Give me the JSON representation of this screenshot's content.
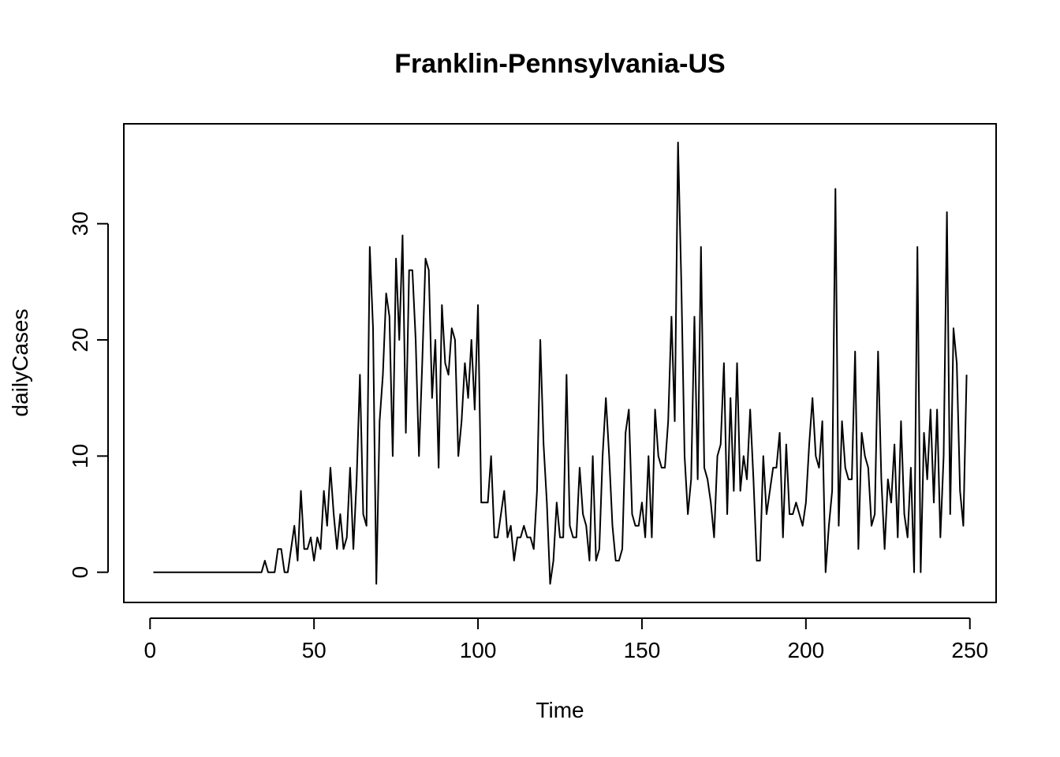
{
  "chart_data": {
    "type": "line",
    "title": "Franklin-Pennsylvania-US",
    "xlabel": "Time",
    "ylabel": "dailyCases",
    "xlim": [
      -8,
      258
    ],
    "ylim": [
      -2.6,
      38.6
    ],
    "xticks": [
      0,
      50,
      100,
      150,
      200,
      250
    ],
    "yticks": [
      0,
      10,
      20,
      30
    ],
    "line_color": "#000000",
    "x_start": 1,
    "values": [
      0,
      0,
      0,
      0,
      0,
      0,
      0,
      0,
      0,
      0,
      0,
      0,
      0,
      0,
      0,
      0,
      0,
      0,
      0,
      0,
      0,
      0,
      0,
      0,
      0,
      0,
      0,
      0,
      0,
      0,
      0,
      0,
      0,
      0,
      1,
      0,
      0,
      0,
      2,
      2,
      0,
      0,
      2,
      4,
      1,
      7,
      2,
      2,
      3,
      1,
      3,
      2,
      7,
      4,
      9,
      5,
      2,
      5,
      2,
      3,
      9,
      2,
      8,
      17,
      5,
      4,
      28,
      21,
      -1,
      13,
      17,
      24,
      22,
      10,
      27,
      20,
      29,
      12,
      26,
      26,
      20,
      10,
      18,
      27,
      26,
      15,
      20,
      9,
      23,
      18,
      17,
      21,
      20,
      10,
      13,
      18,
      15,
      20,
      14,
      23,
      6,
      6,
      6,
      10,
      3,
      3,
      5,
      7,
      3,
      4,
      1,
      3,
      3,
      4,
      3,
      3,
      2,
      7,
      20,
      11,
      6,
      -1,
      1,
      6,
      3,
      3,
      17,
      4,
      3,
      3,
      9,
      5,
      4,
      1,
      10,
      1,
      2,
      10,
      15,
      10,
      4,
      1,
      1,
      2,
      12,
      14,
      5,
      4,
      4,
      6,
      3,
      10,
      3,
      14,
      10,
      9,
      9,
      13,
      22,
      13,
      37,
      25,
      10,
      5,
      8,
      22,
      8,
      28,
      9,
      8,
      6,
      3,
      10,
      11,
      18,
      5,
      15,
      7,
      18,
      7,
      10,
      8,
      14,
      8,
      1,
      1,
      10,
      5,
      7,
      9,
      9,
      12,
      3,
      11,
      5,
      5,
      6,
      5,
      4,
      6,
      11,
      15,
      10,
      9,
      13,
      0,
      4,
      7,
      33,
      4,
      13,
      9,
      8,
      8,
      19,
      2,
      12,
      10,
      9,
      4,
      5,
      19,
      8,
      2,
      8,
      6,
      11,
      3,
      13,
      5,
      3,
      9,
      0,
      28,
      0,
      12,
      8,
      14,
      6,
      14,
      3,
      10,
      31,
      5,
      21,
      18,
      7,
      4,
      17
    ]
  }
}
